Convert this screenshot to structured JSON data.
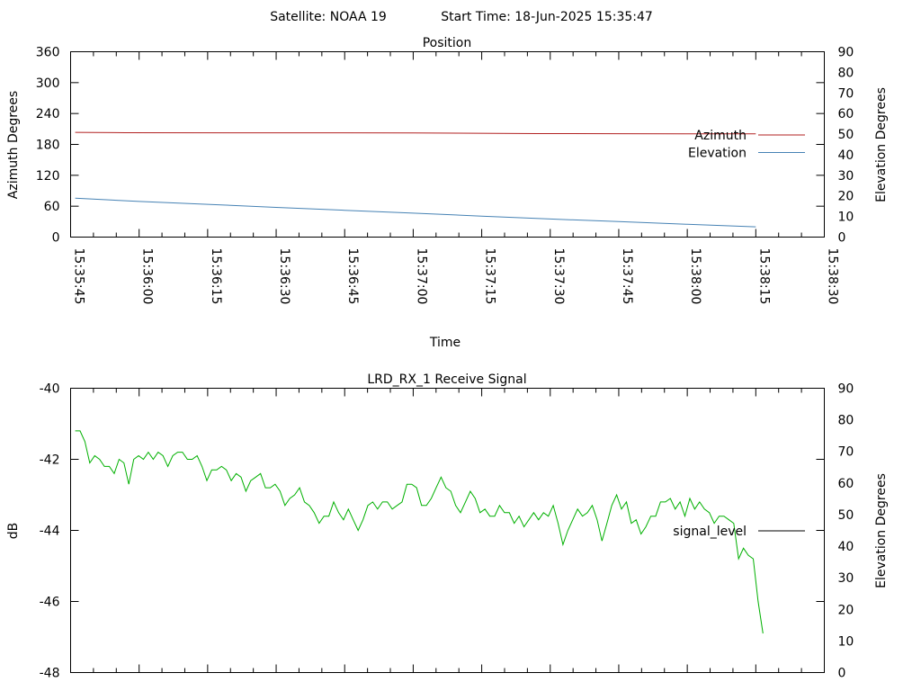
{
  "header": {
    "satellite": "Satellite: NOAA 19",
    "start_time": "Start Time: 18-Jun-2025 15:35:47"
  },
  "chart_data": [
    {
      "type": "line",
      "title": "Position",
      "xlabel": "Time",
      "ylabel": "Azimuth Degrees",
      "y2label": "Elevation Degrees",
      "x_start": "15:35:45",
      "x_end": "15:38:30",
      "x_tick_labels": [
        "15:35:45",
        "15:36:00",
        "15:36:15",
        "15:36:30",
        "15:36:45",
        "15:37:00",
        "15:37:15",
        "15:37:30",
        "15:37:45",
        "15:38:00",
        "15:38:15",
        "15:38:30"
      ],
      "ylim": [
        0,
        360
      ],
      "y_ticks": [
        "0",
        "60",
        "120",
        "180",
        "240",
        "300",
        "360"
      ],
      "y2lim": [
        0,
        90
      ],
      "y2_ticks": [
        "0",
        "10",
        "20",
        "30",
        "40",
        "50",
        "60",
        "70",
        "80",
        "90"
      ],
      "legend_position": "right",
      "series": [
        {
          "name": "Azimuth",
          "axis": "y1",
          "color": "#b22222",
          "x": [
            "15:35:46",
            "15:35:57",
            "15:36:30",
            "15:37:00",
            "15:37:27",
            "15:37:45",
            "15:38:00",
            "15:38:15"
          ],
          "values": [
            203.5,
            202.7,
            202.6,
            202.4,
            201.0,
            200.8,
            200.6,
            200.5
          ]
        },
        {
          "name": "Elevation",
          "axis": "y2",
          "color": "#4682b4",
          "x": [
            "15:35:46",
            "15:36:00",
            "15:36:15",
            "15:36:30",
            "15:36:45",
            "15:37:00",
            "15:37:15",
            "15:37:30",
            "15:37:45",
            "15:38:00",
            "15:38:15"
          ],
          "values": [
            18.9,
            17.3,
            15.9,
            14.4,
            13.0,
            11.6,
            10.2,
            8.8,
            7.5,
            6.2,
            5.0
          ]
        }
      ]
    },
    {
      "type": "line",
      "title": "LRD_RX_1 Receive Signal",
      "xlabel": "",
      "ylabel": "dB",
      "y2label": "Elevation Degrees",
      "ylim": [
        -48,
        -40
      ],
      "y_ticks": [
        "-40",
        "-42",
        "-44",
        "-46",
        "-48"
      ],
      "y2lim": [
        0,
        90
      ],
      "y2_ticks": [
        "0",
        "10",
        "20",
        "30",
        "40",
        "50",
        "60",
        "70",
        "80",
        "90"
      ],
      "legend_position": "right",
      "series": [
        {
          "name": "signal_level",
          "color": "#00b000",
          "legend_color": "#000000",
          "values": [
            -41.2,
            -41.2,
            -41.5,
            -42.1,
            -41.9,
            -42.0,
            -42.2,
            -42.2,
            -42.4,
            -42.0,
            -42.1,
            -42.7,
            -42.0,
            -41.9,
            -42.0,
            -41.8,
            -42.0,
            -41.8,
            -41.9,
            -42.2,
            -41.9,
            -41.8,
            -41.8,
            -42.0,
            -42.0,
            -41.9,
            -42.2,
            -42.6,
            -42.3,
            -42.3,
            -42.2,
            -42.3,
            -42.6,
            -42.4,
            -42.5,
            -42.9,
            -42.6,
            -42.5,
            -42.4,
            -42.8,
            -42.8,
            -42.7,
            -42.9,
            -43.3,
            -43.1,
            -43.0,
            -42.8,
            -43.2,
            -43.3,
            -43.5,
            -43.8,
            -43.6,
            -43.6,
            -43.2,
            -43.5,
            -43.7,
            -43.4,
            -43.7,
            -44.0,
            -43.7,
            -43.3,
            -43.2,
            -43.4,
            -43.2,
            -43.2,
            -43.4,
            -43.3,
            -43.2,
            -42.7,
            -42.7,
            -42.8,
            -43.3,
            -43.3,
            -43.1,
            -42.8,
            -42.5,
            -42.8,
            -42.9,
            -43.3,
            -43.5,
            -43.2,
            -42.9,
            -43.1,
            -43.5,
            -43.4,
            -43.6,
            -43.6,
            -43.3,
            -43.5,
            -43.5,
            -43.8,
            -43.6,
            -43.9,
            -43.7,
            -43.5,
            -43.7,
            -43.5,
            -43.6,
            -43.3,
            -43.8,
            -44.4,
            -44.0,
            -43.7,
            -43.4,
            -43.6,
            -43.5,
            -43.3,
            -43.7,
            -44.3,
            -43.8,
            -43.3,
            -43.0,
            -43.4,
            -43.2,
            -43.8,
            -43.7,
            -44.1,
            -43.9,
            -43.6,
            -43.6,
            -43.2,
            -43.2,
            -43.1,
            -43.4,
            -43.2,
            -43.6,
            -43.1,
            -43.4,
            -43.2,
            -43.4,
            -43.5,
            -43.8,
            -43.6,
            -43.6,
            -43.7,
            -43.8,
            -44.8,
            -44.5,
            -44.7,
            -44.8,
            -46.0,
            -46.9
          ]
        }
      ]
    }
  ]
}
